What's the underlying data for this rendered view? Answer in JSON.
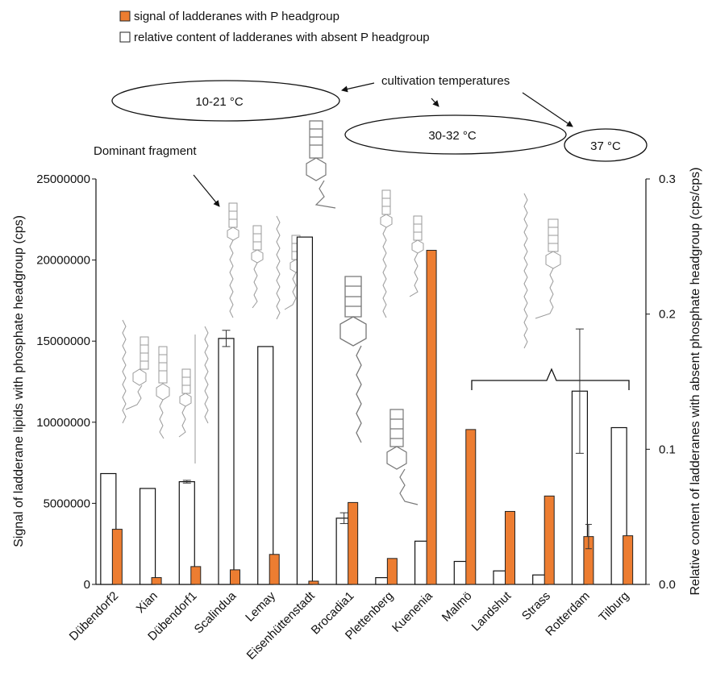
{
  "chart_data": {
    "type": "bar",
    "categories": [
      "Dübendorf2",
      "Xian",
      "Dübendorf1",
      "Scalindua",
      "Lemay",
      "Eisenhüttenstadt",
      "Brocadia1",
      "Plettenberg",
      "Kuenenia",
      "Malmö",
      "Landshut",
      "Strass",
      "Rotterdam",
      "Tilburg"
    ],
    "series": [
      {
        "name": "relative content of ladderanes with absent P headgroup",
        "axis": "right",
        "color": "#ffffff",
        "values": [
          0.082,
          0.071,
          0.076,
          0.182,
          0.176,
          0.257,
          0.049,
          0.005,
          0.032,
          0.017,
          0.01,
          0.007,
          0.143,
          0.116
        ],
        "error": [
          0,
          0,
          0.001,
          0.006,
          0,
          0,
          0.004,
          0,
          0,
          0,
          0,
          0,
          0.046,
          0
        ]
      },
      {
        "name": "signal of ladderanes with P headgroup",
        "axis": "left",
        "color": "#ed7d31",
        "values": [
          3400000,
          420000,
          1100000,
          900000,
          1850000,
          200000,
          5050000,
          1600000,
          20600000,
          9550000,
          4500000,
          5450000,
          2950000,
          3000000
        ],
        "error": [
          0,
          0,
          0,
          0,
          0,
          0,
          0,
          0,
          0,
          0,
          0,
          0,
          750000,
          0
        ]
      }
    ],
    "ylabel": "Signal of ladderane lipids with phosphate headgroup (cps)",
    "ylabel_right": "Relative content of ladderanes with absent phosphate headgroup (cps/cps)",
    "ylim": [
      0,
      25000000
    ],
    "ylim_right": [
      0,
      0.3
    ],
    "yticks": [
      "0",
      "5000000",
      "10000000",
      "15000000",
      "20000000",
      "25000000"
    ],
    "yticks_right": [
      "0.0",
      "0.1",
      "0.2",
      "0.3"
    ],
    "legend_position": "top-left",
    "annotations": {
      "cultivation": "cultivation temperatures",
      "temp_low": "10-21 °C",
      "temp_mid": "30-32 °C",
      "temp_high": "37 °C",
      "dominant_fragment": "Dominant fragment"
    }
  }
}
